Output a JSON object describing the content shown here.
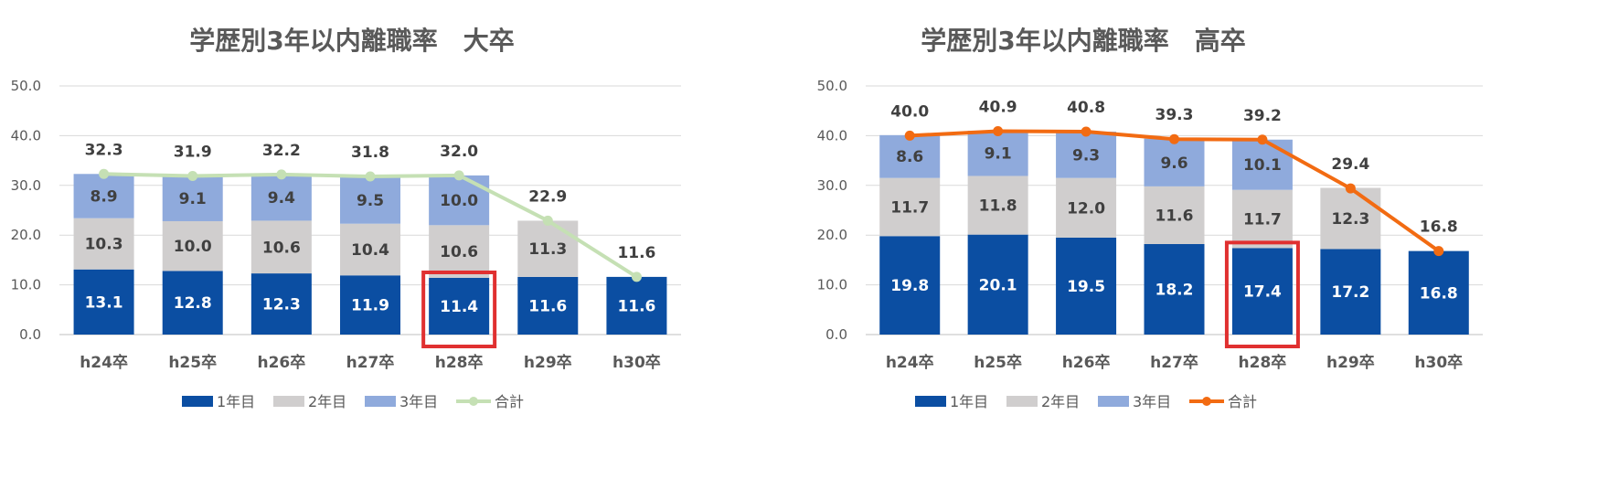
{
  "chart_data": [
    {
      "type": "bar",
      "stacked": true,
      "title": "学歴別3年以内離職率　大卒",
      "categories": [
        "h24卒",
        "h25卒",
        "h26卒",
        "h27卒",
        "h28卒",
        "h29卒",
        "h30卒"
      ],
      "ylim": [
        0,
        50
      ],
      "yticks": [
        "0.0",
        "10.0",
        "20.0",
        "30.0",
        "40.0",
        "50.0"
      ],
      "grid": true,
      "legend_position": "bottom",
      "series": [
        {
          "name": "1年目",
          "color": "#0b4ea2",
          "values": [
            13.1,
            12.8,
            12.3,
            11.9,
            11.4,
            11.6,
            11.6
          ],
          "labels": [
            "13.1",
            "12.8",
            "12.3",
            "11.9",
            "11.4",
            "11.6",
            "11.6"
          ]
        },
        {
          "name": "2年目",
          "color": "#d0cece",
          "values": [
            10.3,
            10.0,
            10.6,
            10.4,
            10.6,
            11.3,
            null
          ],
          "labels": [
            "10.3",
            "10.0",
            "10.6",
            "10.4",
            "10.6",
            "11.3",
            null
          ]
        },
        {
          "name": "3年目",
          "color": "#8faadc",
          "values": [
            8.9,
            9.1,
            9.4,
            9.5,
            10.0,
            null,
            null
          ],
          "labels": [
            "8.9",
            "9.1",
            "9.4",
            "9.5",
            "10.0",
            null,
            null
          ]
        }
      ],
      "total": {
        "name": "合計",
        "color": "#c5e0b4",
        "values": [
          32.3,
          31.9,
          32.2,
          31.8,
          32.0,
          22.9,
          11.6
        ],
        "labels": [
          "32.3",
          "31.9",
          "32.2",
          "31.8",
          "32.0",
          "22.9",
          "11.6"
        ]
      },
      "highlight": {
        "category_index": 4,
        "series_index": 0,
        "color": "#e03030"
      }
    },
    {
      "type": "bar",
      "stacked": true,
      "title": "学歴別3年以内離職率　高卒",
      "categories": [
        "h24卒",
        "h25卒",
        "h26卒",
        "h27卒",
        "h28卒",
        "h29卒",
        "h30卒"
      ],
      "ylim": [
        0,
        50
      ],
      "yticks": [
        "0.0",
        "10.0",
        "20.0",
        "30.0",
        "40.0",
        "50.0"
      ],
      "grid": true,
      "legend_position": "bottom",
      "series": [
        {
          "name": "1年目",
          "color": "#0b4ea2",
          "values": [
            19.8,
            20.1,
            19.5,
            18.2,
            17.4,
            17.2,
            16.8
          ],
          "labels": [
            "19.8",
            "20.1",
            "19.5",
            "18.2",
            "17.4",
            "17.2",
            "16.8"
          ]
        },
        {
          "name": "2年目",
          "color": "#d0cece",
          "values": [
            11.7,
            11.8,
            12.0,
            11.6,
            11.7,
            12.3,
            null
          ],
          "labels": [
            "11.7",
            "11.8",
            "12.0",
            "11.6",
            "11.7",
            "12.3",
            null
          ]
        },
        {
          "name": "3年目",
          "color": "#8faadc",
          "values": [
            8.6,
            9.1,
            9.3,
            9.6,
            10.1,
            null,
            null
          ],
          "labels": [
            "8.6",
            "9.1",
            "9.3",
            "9.6",
            "10.1",
            null,
            null
          ]
        }
      ],
      "total": {
        "name": "合計",
        "color": "#f26b12",
        "values": [
          40.0,
          40.9,
          40.8,
          39.3,
          39.2,
          29.4,
          16.8
        ],
        "labels": [
          "40.0",
          "40.9",
          "40.8",
          "39.3",
          "39.2",
          "29.4",
          "16.8"
        ]
      },
      "highlight": {
        "category_index": 4,
        "series_index": 0,
        "color": "#e03030"
      }
    }
  ]
}
